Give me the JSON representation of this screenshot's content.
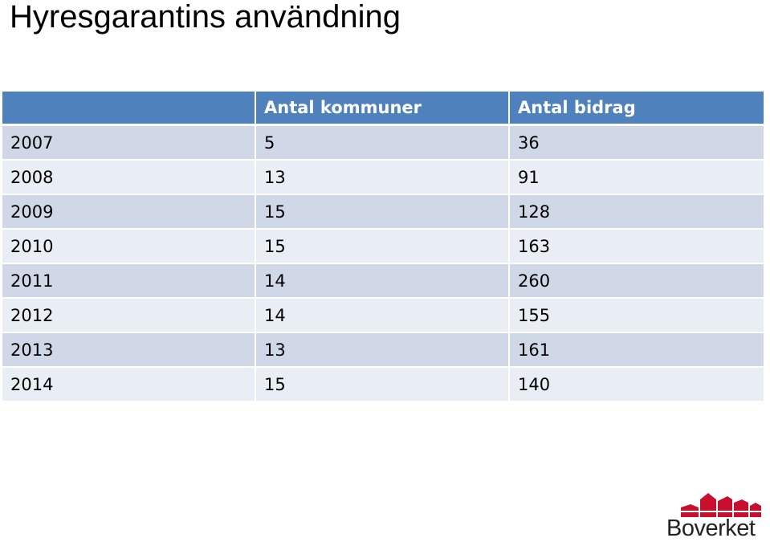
{
  "title": "Hyresgarantins användning",
  "table": {
    "headers": [
      "",
      "Antal kommuner",
      "Antal bidrag"
    ],
    "rows": [
      [
        "2007",
        "5",
        "36"
      ],
      [
        "2008",
        "13",
        "91"
      ],
      [
        "2009",
        "15",
        "128"
      ],
      [
        "2010",
        "15",
        "163"
      ],
      [
        "2011",
        "14",
        "260"
      ],
      [
        "2012",
        "14",
        "155"
      ],
      [
        "2013",
        "13",
        "161"
      ],
      [
        "2014",
        "15",
        "140"
      ]
    ]
  },
  "logo": {
    "text": "Boverket",
    "icon": "rooftops-logo-icon",
    "color": "#c8102e"
  },
  "colors": {
    "header_bg": "#4f81bd",
    "row_odd_bg": "#d0d8e8",
    "row_even_bg": "#e9edf4"
  }
}
